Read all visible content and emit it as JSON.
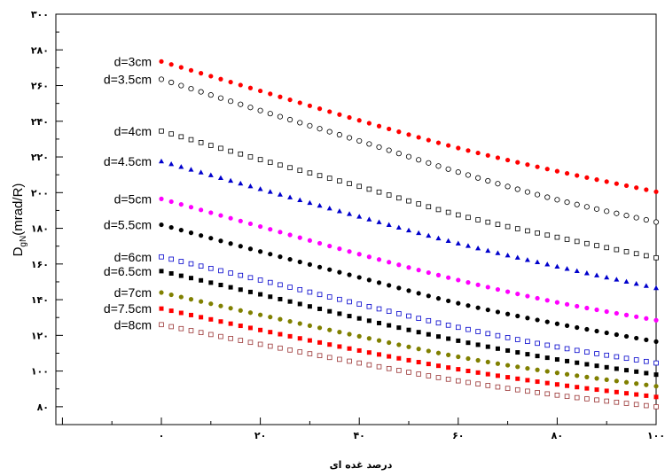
{
  "chart_data": {
    "type": "scatter",
    "xlabel": "درصد غده ای",
    "ylabel_main": "D",
    "ylabel_sub": "gN",
    "ylabel_unit": "(mrad/R)",
    "xlim": [
      0,
      100
    ],
    "ylim": [
      70,
      300
    ],
    "x_ticks": [
      {
        "value": 0,
        "label": "۰"
      },
      {
        "value": 20,
        "label": "۲۰"
      },
      {
        "value": 40,
        "label": "۴۰"
      },
      {
        "value": 60,
        "label": "۶۰"
      },
      {
        "value": 80,
        "label": "۸۰"
      },
      {
        "value": 100,
        "label": "۱۰۰"
      }
    ],
    "y_ticks": [
      {
        "value": 80,
        "label": "۸۰"
      },
      {
        "value": 100,
        "label": "۱۰۰"
      },
      {
        "value": 120,
        "label": "۱۲۰"
      },
      {
        "value": 140,
        "label": "۱۴۰"
      },
      {
        "value": 160,
        "label": "۱۶۰"
      },
      {
        "value": 180,
        "label": "۱۸۰"
      },
      {
        "value": 200,
        "label": "۲۰۰"
      },
      {
        "value": 220,
        "label": "۲۲۰"
      },
      {
        "value": 240,
        "label": "۲۴۰"
      },
      {
        "value": 260,
        "label": "۲۶۰"
      },
      {
        "value": 280,
        "label": "۲۸۰"
      },
      {
        "value": 300,
        "label": "۳۰۰"
      }
    ],
    "x_step": 2,
    "grid": false,
    "series": [
      {
        "name": "d=3cm",
        "color": "#ff0000",
        "marker": "circle-filled",
        "x": [
          0,
          20,
          40,
          60,
          80,
          100
        ],
        "y": [
          273.5,
          257,
          240.5,
          225,
          212,
          200.5
        ]
      },
      {
        "name": "d=3.5cm",
        "color": "#000000",
        "marker": "circle-open",
        "x": [
          0,
          20,
          40,
          60,
          80,
          100
        ],
        "y": [
          263.5,
          246,
          229,
          211.5,
          196,
          183.5
        ]
      },
      {
        "name": "d=4cm",
        "color": "#000000",
        "marker": "square-open",
        "x": [
          0,
          20,
          40,
          60,
          80,
          100
        ],
        "y": [
          234.5,
          218.5,
          203.5,
          187.5,
          175,
          163.5
        ]
      },
      {
        "name": "d=4.5cm",
        "color": "#0000cc",
        "marker": "triangle-filled",
        "x": [
          0,
          20,
          40,
          60,
          80,
          100
        ],
        "y": [
          217.5,
          202,
          186.5,
          171.5,
          158.5,
          146.5
        ]
      },
      {
        "name": "d=5cm",
        "color": "#ff00ff",
        "marker": "circle-filled",
        "x": [
          0,
          20,
          40,
          60,
          80,
          100
        ],
        "y": [
          196.5,
          181,
          165.5,
          151,
          138.5,
          128.5
        ]
      },
      {
        "name": "d=5.5cm",
        "color": "#000000",
        "marker": "circle-filled",
        "x": [
          0,
          20,
          40,
          60,
          80,
          100
        ],
        "y": [
          182,
          167,
          152.5,
          138,
          126.5,
          116.5
        ]
      },
      {
        "name": "d=6cm",
        "color": "#0000cc",
        "marker": "square-open",
        "x": [
          0,
          20,
          40,
          60,
          80,
          100
        ],
        "y": [
          164,
          151,
          137.5,
          124.5,
          113.5,
          104.5
        ]
      },
      {
        "name": "d=6.5cm",
        "color": "#000000",
        "marker": "square-filled",
        "x": [
          0,
          20,
          40,
          60,
          80,
          100
        ],
        "y": [
          156,
          143,
          129.5,
          117,
          106.5,
          98
        ]
      },
      {
        "name": "d=7cm",
        "color": "#808000",
        "marker": "circle-filled",
        "x": [
          0,
          20,
          40,
          60,
          80,
          100
        ],
        "y": [
          144,
          131.5,
          119.5,
          108,
          99,
          91.5
        ]
      },
      {
        "name": "d=7.5cm",
        "color": "#ff0000",
        "marker": "square-filled",
        "x": [
          0,
          20,
          40,
          60,
          80,
          100
        ],
        "y": [
          135,
          123,
          111.5,
          101,
          92.5,
          85.5
        ]
      },
      {
        "name": "d=8cm",
        "color": "#993333",
        "marker": "square-open",
        "x": [
          0,
          20,
          40,
          60,
          80,
          100
        ],
        "y": [
          126,
          115,
          104.5,
          94.5,
          86.5,
          80
        ]
      }
    ]
  }
}
